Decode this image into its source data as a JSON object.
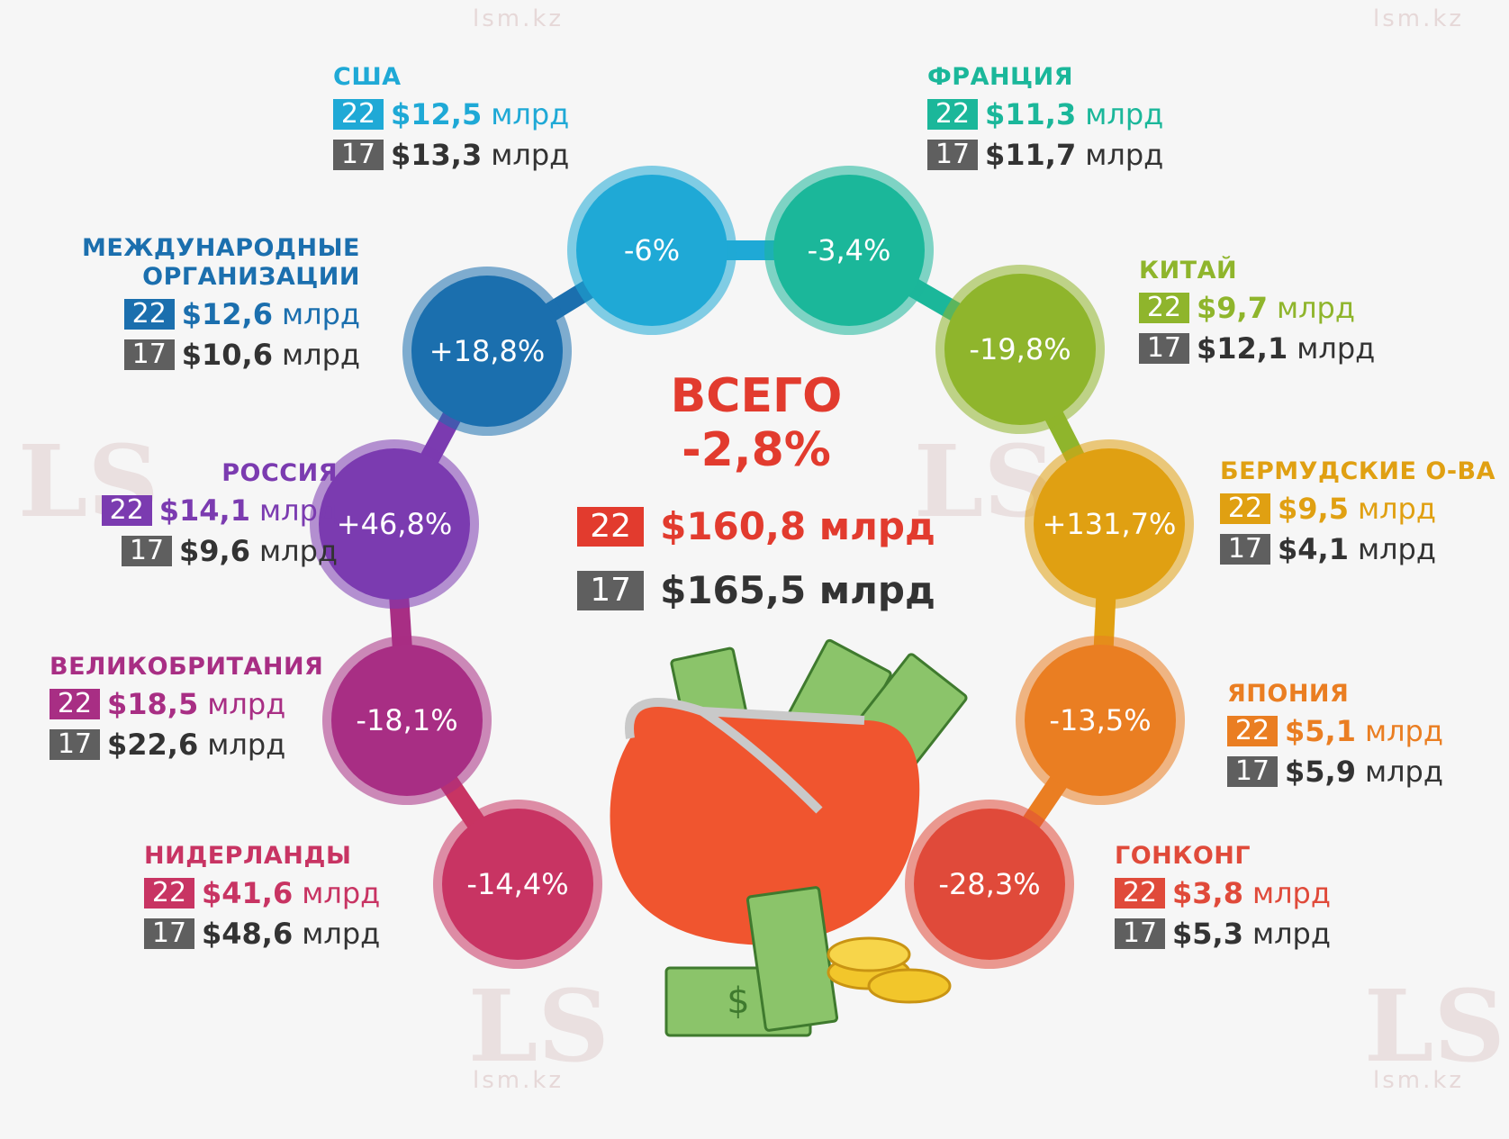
{
  "watermark": {
    "logo": "LS",
    "site": "lsm.kz"
  },
  "center": {
    "title_line1": "ВСЕГО",
    "title_line2": "-2,8%",
    "total_22": {
      "year": "22",
      "value": "$160,8 млрд",
      "color": "#e23b2e"
    },
    "total_17": {
      "year": "17",
      "value": "$165,5 млрд"
    }
  },
  "unit": "млрд",
  "chart_data": {
    "type": "table",
    "unit": "млрд $",
    "columns": [
      "22",
      "17"
    ],
    "rows": [
      {
        "country": "США",
        "v22": 12.5,
        "v17": 13.3,
        "change": "-6%",
        "label22": "$12,5",
        "label17": "$13,3",
        "color": "#1fa9d6"
      },
      {
        "country": "ФРАНЦИЯ",
        "v22": 11.3,
        "v17": 11.7,
        "change": "-3,4%",
        "label22": "$11,3",
        "label17": "$11,7",
        "color": "#1bb79a"
      },
      {
        "country": "КИТАЙ",
        "v22": 9.7,
        "v17": 12.1,
        "change": "-19,8%",
        "label22": "$9,7",
        "label17": "$12,1",
        "color": "#8fb52c"
      },
      {
        "country": "БЕРМУДСКИЕ О-ВА",
        "v22": 9.5,
        "v17": 4.1,
        "change": "+131,7%",
        "label22": "$9,5",
        "label17": "$4,1",
        "color": "#e0a012"
      },
      {
        "country": "ЯПОНИЯ",
        "v22": 5.1,
        "v17": 5.9,
        "change": "-13,5%",
        "label22": "$5,1",
        "label17": "$5,9",
        "color": "#ea7e22"
      },
      {
        "country": "ГОНКОНГ",
        "v22": 3.8,
        "v17": 5.3,
        "change": "-28,3%",
        "label22": "$3,8",
        "label17": "$5,3",
        "color": "#e04a3a"
      },
      {
        "country": "НИДЕРЛАНДЫ",
        "v22": 41.6,
        "v17": 48.6,
        "change": "-14,4%",
        "label22": "$41,6",
        "label17": "$48,6",
        "color": "#c83463"
      },
      {
        "country": "ВЕЛИКОБРИТАНИЯ",
        "v22": 18.5,
        "v17": 22.6,
        "change": "-18,1%",
        "label22": "$18,5",
        "label17": "$22,6",
        "color": "#a82e84"
      },
      {
        "country": "РОССИЯ",
        "v22": 14.1,
        "v17": 9.6,
        "change": "+46,8%",
        "label22": "$14,1",
        "label17": "$9,6",
        "color": "#7b3bb0"
      },
      {
        "country": "МЕЖДУНАРОДНЫЕ\nОРГАНИЗАЦИИ",
        "v22": 12.6,
        "v17": 10.6,
        "change": "+18,8%",
        "label22": "$12,6",
        "label17": "$10,6",
        "color": "#1b6fae"
      }
    ],
    "total": {
      "v22": 160.8,
      "v17": 165.5,
      "change": "-2,8%"
    }
  }
}
